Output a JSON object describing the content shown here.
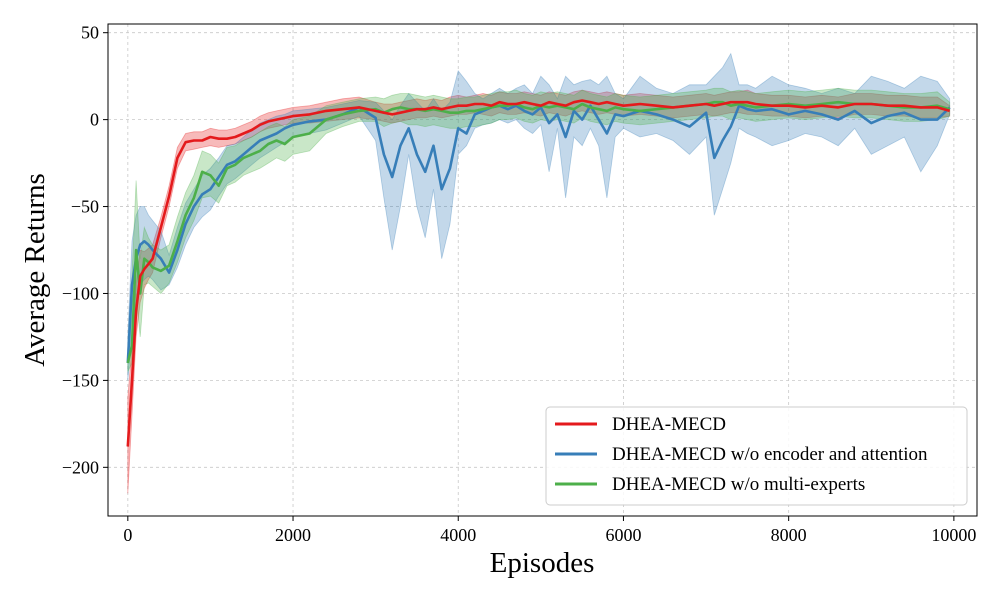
{
  "chart_data": {
    "type": "line",
    "title": "",
    "xlabel": "Episodes",
    "ylabel": "Average Returns",
    "xlim": [
      -240,
      10280
    ],
    "ylim": [
      -228,
      55
    ],
    "xticks": [
      0,
      2000,
      4000,
      6000,
      8000,
      10000
    ],
    "xtick_labels": [
      "0",
      "2000",
      "4000",
      "6000",
      "8000",
      "10000"
    ],
    "yticks": [
      -200,
      -150,
      -100,
      -50,
      0,
      50
    ],
    "ytick_labels": [
      "−200",
      "−150",
      "−100",
      "−50",
      "0",
      "50"
    ],
    "grid": true,
    "legend_position": "lower-right",
    "x": [
      0,
      50,
      100,
      150,
      200,
      250,
      300,
      400,
      500,
      600,
      700,
      800,
      900,
      1000,
      1100,
      1200,
      1300,
      1400,
      1500,
      1600,
      1700,
      1800,
      1900,
      2000,
      2200,
      2400,
      2600,
      2800,
      3000,
      3100,
      3200,
      3300,
      3400,
      3500,
      3600,
      3700,
      3800,
      3900,
      4000,
      4100,
      4200,
      4300,
      4400,
      4500,
      4600,
      4700,
      4800,
      4900,
      5000,
      5100,
      5200,
      5300,
      5400,
      5500,
      5600,
      5700,
      5800,
      5900,
      6000,
      6200,
      6400,
      6600,
      6800,
      7000,
      7100,
      7200,
      7300,
      7400,
      7500,
      7600,
      7800,
      8000,
      8200,
      8400,
      8600,
      8800,
      9000,
      9200,
      9400,
      9600,
      9800,
      9950
    ],
    "series": [
      {
        "name": "DHEA-MECD",
        "color": "#e41a1c",
        "values": [
          -188,
          -150,
          -110,
          -90,
          -86,
          -83,
          -80,
          -62,
          -44,
          -22,
          -13,
          -12,
          -12,
          -10,
          -11,
          -11,
          -10,
          -8,
          -6,
          -3,
          -1,
          0,
          1,
          2,
          3,
          5,
          6,
          7,
          5,
          4,
          3,
          4,
          5,
          6,
          6,
          7,
          6,
          7,
          8,
          8,
          9,
          9,
          8,
          10,
          9,
          9,
          10,
          9,
          8,
          10,
          9,
          8,
          10,
          11,
          10,
          9,
          10,
          9,
          8,
          9,
          8,
          7,
          8,
          9,
          8,
          9,
          10,
          10,
          10,
          9,
          8,
          8,
          7,
          8,
          7,
          9,
          9,
          8,
          8,
          7,
          7,
          5
        ],
        "lower": [
          -215,
          -170,
          -125,
          -105,
          -97,
          -92,
          -88,
          -68,
          -50,
          -28,
          -18,
          -17,
          -16,
          -15,
          -16,
          -15,
          -14,
          -12,
          -10,
          -7,
          -5,
          -4,
          -3,
          -2,
          -2,
          -1,
          0,
          1,
          0,
          -1,
          -2,
          -1,
          0,
          1,
          1,
          2,
          1,
          2,
          3,
          3,
          4,
          3,
          2,
          4,
          3,
          3,
          4,
          3,
          2,
          4,
          3,
          2,
          4,
          5,
          4,
          3,
          4,
          3,
          2,
          3,
          2,
          1,
          2,
          3,
          2,
          3,
          4,
          4,
          3,
          3,
          2,
          2,
          1,
          2,
          1,
          3,
          3,
          2,
          2,
          1,
          1,
          2
        ],
        "upper": [
          -160,
          -130,
          -95,
          -75,
          -76,
          -74,
          -72,
          -56,
          -38,
          -16,
          -8,
          -7,
          -7,
          -5,
          -6,
          -6,
          -5,
          -3,
          -1,
          2,
          4,
          5,
          6,
          7,
          8,
          10,
          12,
          13,
          10,
          9,
          9,
          10,
          11,
          12,
          11,
          12,
          11,
          13,
          14,
          13,
          14,
          15,
          14,
          16,
          15,
          15,
          16,
          15,
          14,
          16,
          15,
          14,
          16,
          17,
          16,
          15,
          16,
          15,
          14,
          15,
          14,
          13,
          14,
          15,
          14,
          15,
          16,
          16,
          17,
          15,
          14,
          14,
          13,
          14,
          13,
          15,
          15,
          14,
          14,
          13,
          13,
          8
        ]
      },
      {
        "name": "DHEA-MECD w/o encoder and attention",
        "color": "#377eb8",
        "values": [
          -140,
          -95,
          -80,
          -72,
          -70,
          -72,
          -75,
          -80,
          -88,
          -75,
          -60,
          -50,
          -43,
          -40,
          -33,
          -26,
          -24,
          -20,
          -16,
          -12,
          -10,
          -8,
          -5,
          -3,
          -1,
          0,
          3,
          7,
          1,
          -20,
          -33,
          -15,
          -5,
          -20,
          -30,
          -15,
          -40,
          -28,
          -5,
          -8,
          3,
          5,
          7,
          8,
          6,
          8,
          5,
          3,
          7,
          -2,
          3,
          -10,
          5,
          0,
          8,
          0,
          -8,
          3,
          2,
          5,
          3,
          0,
          -4,
          4,
          -22,
          -12,
          -4,
          8,
          6,
          5,
          6,
          3,
          5,
          3,
          0,
          5,
          -2,
          2,
          4,
          0,
          0,
          7
        ],
        "lower": [
          -150,
          -125,
          -110,
          -95,
          -92,
          -90,
          -92,
          -98,
          -95,
          -85,
          -72,
          -62,
          -56,
          -52,
          -44,
          -37,
          -34,
          -30,
          -26,
          -22,
          -19,
          -16,
          -13,
          -10,
          -8,
          -6,
          -2,
          2,
          -12,
          -45,
          -75,
          -50,
          -20,
          -50,
          -68,
          -40,
          -80,
          -60,
          -20,
          -15,
          -5,
          -3,
          -2,
          0,
          -2,
          0,
          -5,
          -8,
          -3,
          -30,
          -5,
          -45,
          -10,
          -15,
          -5,
          -15,
          -45,
          -10,
          -5,
          -10,
          -8,
          -12,
          -20,
          -10,
          -55,
          -40,
          -25,
          -5,
          -8,
          -10,
          -15,
          -12,
          -8,
          -10,
          -15,
          -5,
          -20,
          -15,
          -10,
          -30,
          -15,
          3
        ],
        "upper": [
          -125,
          -70,
          -55,
          -50,
          -50,
          -55,
          -58,
          -64,
          -78,
          -62,
          -48,
          -40,
          -32,
          -28,
          -22,
          -15,
          -14,
          -10,
          -6,
          -2,
          0,
          2,
          3,
          5,
          6,
          7,
          9,
          11,
          10,
          5,
          0,
          8,
          15,
          10,
          5,
          12,
          5,
          10,
          28,
          22,
          15,
          12,
          15,
          18,
          15,
          18,
          20,
          15,
          25,
          20,
          12,
          25,
          20,
          22,
          23,
          20,
          25,
          15,
          12,
          25,
          18,
          15,
          20,
          20,
          25,
          30,
          38,
          20,
          20,
          18,
          25,
          20,
          18,
          15,
          18,
          15,
          25,
          22,
          18,
          25,
          22,
          12
        ]
      },
      {
        "name": "DHEA-MECD w/o multi-experts",
        "color": "#4daf4a",
        "values": [
          -140,
          -130,
          -75,
          -100,
          -80,
          -82,
          -85,
          -87,
          -84,
          -70,
          -55,
          -45,
          -30,
          -32,
          -38,
          -28,
          -26,
          -22,
          -20,
          -18,
          -14,
          -12,
          -14,
          -10,
          -8,
          0,
          3,
          5,
          6,
          4,
          6,
          7,
          6,
          6,
          5,
          6,
          5,
          4,
          4,
          5,
          5,
          6,
          7,
          8,
          8,
          9,
          7,
          6,
          8,
          7,
          8,
          7,
          6,
          9,
          7,
          6,
          5,
          7,
          6,
          5,
          6,
          7,
          8,
          9,
          10,
          10,
          8,
          9,
          8,
          7,
          8,
          9,
          8,
          9,
          10,
          9,
          9,
          8,
          7,
          7,
          8,
          6
        ],
        "lower": [
          -145,
          -140,
          -100,
          -125,
          -95,
          -94,
          -96,
          -100,
          -94,
          -82,
          -68,
          -58,
          -45,
          -44,
          -48,
          -38,
          -36,
          -32,
          -30,
          -28,
          -25,
          -22,
          -24,
          -20,
          -18,
          -8,
          -4,
          -1,
          -1,
          -4,
          -2,
          -1,
          -3,
          -3,
          -4,
          -3,
          -4,
          -5,
          -5,
          -4,
          -4,
          -3,
          -2,
          0,
          0,
          1,
          -1,
          -2,
          0,
          -1,
          0,
          -1,
          -2,
          1,
          -1,
          -2,
          -3,
          -1,
          -2,
          -3,
          -2,
          -1,
          0,
          1,
          2,
          2,
          0,
          1,
          0,
          -1,
          0,
          1,
          0,
          1,
          2,
          1,
          1,
          0,
          -1,
          -1,
          0,
          2
        ],
        "upper": [
          -135,
          -90,
          -35,
          -80,
          -62,
          -68,
          -72,
          -75,
          -72,
          -56,
          -42,
          -32,
          -18,
          -20,
          -25,
          -16,
          -15,
          -12,
          -10,
          -7,
          -4,
          -2,
          -4,
          0,
          2,
          8,
          10,
          12,
          13,
          12,
          14,
          15,
          15,
          14,
          13,
          14,
          13,
          12,
          12,
          13,
          13,
          14,
          15,
          16,
          16,
          17,
          15,
          14,
          16,
          15,
          16,
          15,
          14,
          17,
          15,
          14,
          13,
          15,
          14,
          13,
          14,
          15,
          16,
          17,
          18,
          18,
          16,
          17,
          16,
          15,
          16,
          17,
          16,
          17,
          18,
          17,
          17,
          16,
          15,
          15,
          16,
          10
        ]
      }
    ]
  }
}
